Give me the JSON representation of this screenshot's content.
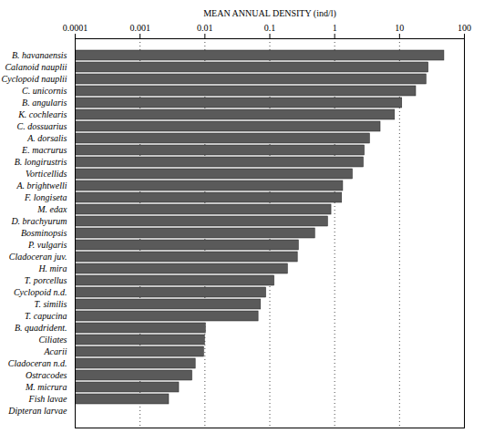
{
  "chart_data": {
    "type": "bar",
    "orientation": "horizontal",
    "xlabel": "MEAN ANNUAL DENSITY (ind/l)",
    "log": "x",
    "grid": true,
    "color": "#5a5a5a",
    "xlim": [
      0.0001,
      100
    ],
    "xticks": [
      0.0001,
      0.001,
      0.01,
      0.1,
      1,
      10,
      100
    ],
    "categories": [
      "B. havanaensis",
      "Calanoid nauplii",
      "Cyclopoid nauplii",
      "C. unicornis",
      "B. angularis",
      "K. cochlearis",
      "C. dossuarius",
      "A. dorsalis",
      "E. macrurus",
      "B. longirustris",
      "Vorticellids",
      "A. brightwelli",
      "F. longiseta",
      "M. edax",
      "D. brachyurum",
      "Bosminopsis",
      "P. vulgaris",
      "Cladoceran juv.",
      "H. mira",
      "T. porcellus",
      "Cyclopoid n.d.",
      "T. similis",
      "T. capucina",
      "B. quadrident.",
      "Ciliates",
      "Acarii",
      "Cladoceran n.d.",
      "Ostracodes",
      "M. micrura",
      "Fish lavae",
      "Dipteran larvae"
    ],
    "values": [
      49,
      28,
      26,
      18,
      11,
      8.5,
      5.1,
      3.5,
      2.9,
      2.8,
      1.9,
      1.35,
      1.3,
      0.89,
      0.79,
      0.5,
      0.28,
      0.27,
      0.19,
      0.118,
      0.088,
      0.073,
      0.067,
      0.0103,
      0.01,
      0.0097,
      0.0072,
      0.0064,
      0.004,
      0.0028,
      null
    ]
  }
}
